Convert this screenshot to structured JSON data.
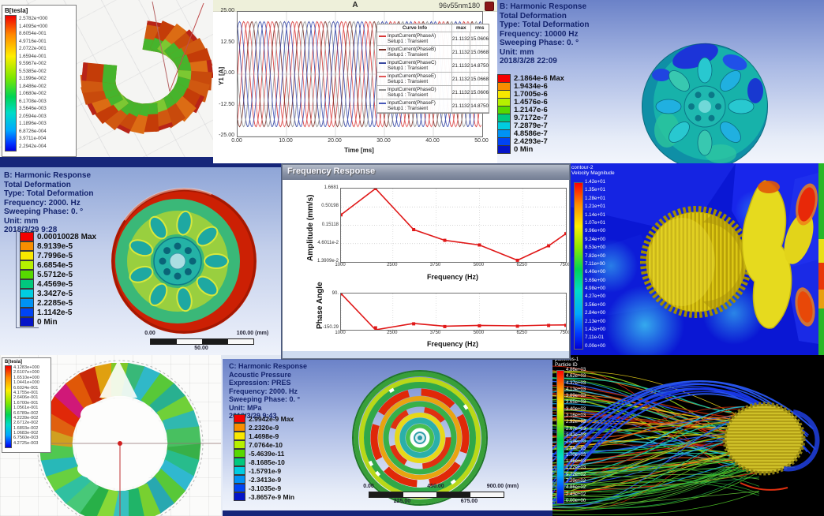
{
  "panels": {
    "torus": {
      "legend_title": "B[tesla]",
      "legend_values": [
        "2.5782e+000",
        "1.4095e+000",
        "8.6054e-001",
        "4.9716e-001",
        "2.0722e-001",
        "1.6594e-001",
        "9.5967e-002",
        "5.5385e-002",
        "3.1996e-002",
        "1.8486e-002",
        "1.0680e-002",
        "6.1708e-003",
        "3.5646e-003",
        "2.0594e-003",
        "1.1896e-003",
        "6.8726e-004",
        "3.9711e-004",
        "2.2942e-004"
      ]
    },
    "currents": {
      "title": "A",
      "model_label": "96v55nm180",
      "ylabel": "Y1 [A]",
      "xlabel": "Time [ms]",
      "yticks": [
        "25.00",
        "12.50",
        "0.00",
        "-12.50",
        "-25.00"
      ],
      "xticks": [
        "0.00",
        "10.00",
        "20.00",
        "30.00",
        "40.00",
        "50.00"
      ],
      "table_headers": [
        "Curve Info",
        "max",
        "rms"
      ],
      "curves": [
        {
          "name": "InputCurrent(PhaseA)",
          "setup": "Setup1 : Transient",
          "max": "21.1132",
          "rms": "15.0606",
          "color": "#d83838"
        },
        {
          "name": "InputCurrent(PhaseB)",
          "setup": "Setup1 : Transient",
          "max": "21.1132",
          "rms": "15.0668",
          "color": "#7a3028"
        },
        {
          "name": "InputCurrent(PhaseC)",
          "setup": "Setup1 : Transient",
          "max": "21.1132",
          "rms": "14.8750",
          "color": "#3848a0"
        },
        {
          "name": "InputCurrent(PhaseE)",
          "setup": "Setup1 : Transient",
          "max": "21.1132",
          "rms": "15.0668",
          "color": "#e05858"
        },
        {
          "name": "InputCurrent(PhaseD)",
          "setup": "Setup1 : Transient",
          "max": "21.1132",
          "rms": "15.0606",
          "color": "#909090"
        },
        {
          "name": "InputCurrent(PhaseF)",
          "setup": "Setup1 : Transient",
          "max": "21.1132",
          "rms": "14.8750",
          "color": "#4858b8"
        }
      ]
    },
    "harmonic_top": {
      "header_lines": [
        "B: Harmonic Response",
        "Total Deformation",
        "Type: Total Deformation",
        "Frequency: 10000 Hz",
        "Sweeping Phase: 0. °",
        "Unit: mm",
        "2018/3/28 22:09"
      ],
      "legend_values": [
        "2.1864e-6 Max",
        "1.9434e-6",
        "1.7005e-6",
        "1.4576e-6",
        "1.2147e-6",
        "9.7172e-7",
        "7.2879e-7",
        "4.8586e-7",
        "2.4293e-7",
        "0 Min"
      ]
    },
    "harmonic_mid": {
      "header_lines": [
        "B: Harmonic Response",
        "Total Deformation",
        "Type: Total Deformation",
        "Frequency: 2000. Hz",
        "Sweeping Phase: 0. °",
        "Unit: mm",
        "2018/3/29 9:28"
      ],
      "legend_values": [
        "0.00010028 Max",
        "8.9139e-5",
        "7.7996e-5",
        "6.6854e-5",
        "5.5712e-5",
        "4.4569e-5",
        "3.3427e-5",
        "2.2285e-5",
        "1.1142e-5",
        "0 Min"
      ],
      "ruler": {
        "top": [
          "0.00",
          "100.00 (mm)"
        ],
        "bottom": [
          "50.00"
        ]
      }
    },
    "freq_response": {
      "window_title": "Frequency Response",
      "amplitude": {
        "ylabel": "Amplitude (mm/s)",
        "xlabel": "Frequency (Hz)",
        "yticks": [
          "1.6681",
          "0.50198",
          "0.15118",
          "4.6011e-2",
          "1.3909e-2"
        ],
        "xticks": [
          "1000",
          "2500",
          "3750",
          "5000",
          "6250",
          "7500"
        ]
      },
      "phase": {
        "ylabel": "Phase Angle",
        "xlabel": "Frequency (Hz)",
        "yticks": [
          "90.",
          "-150.29"
        ],
        "xticks": [
          "1000",
          "2500",
          "3750",
          "5000",
          "6250",
          "7500"
        ]
      }
    },
    "velocity_contour": {
      "legend_title_lines": [
        "contour-2",
        "Velocity Magnitude"
      ],
      "legend_values": [
        "1.42e+01",
        "1.35e+01",
        "1.28e+01",
        "1.21e+01",
        "1.14e+01",
        "1.07e+01",
        "9.96e+00",
        "9.24e+00",
        "8.53e+00",
        "7.82e+00",
        "7.11e+00",
        "6.40e+00",
        "5.69e+00",
        "4.98e+00",
        "4.27e+00",
        "3.56e+00",
        "2.84e+00",
        "2.13e+00",
        "1.42e+00",
        "7.11e-01",
        "0.00e+00"
      ]
    },
    "stator": {
      "legend_title": "B[tesla]",
      "legend_values": [
        "4.1283e+000",
        "2.6107e+000",
        "1.6510e+000",
        "1.0441e+000",
        "6.6024e-001",
        "4.1755e-001",
        "2.6406e-001",
        "1.6700e-001",
        "1.0561e-001",
        "6.6789e-002",
        "4.2239e-002",
        "2.6712e-002",
        "1.6893e-002",
        "1.0683e-002",
        "6.7560e-003",
        "4.2725e-003"
      ]
    },
    "acoustic": {
      "header_lines": [
        "C: Harmonic Response",
        "Acoustic Pressure",
        "Expression: PRES",
        "Frequency: 2000. Hz",
        "Sweeping Phase: 0. °",
        "Unit: MPa",
        "2018/3/29 9:43"
      ],
      "legend_values": [
        "2.9942e-9 Max",
        "2.2320e-9",
        "1.4698e-9",
        "7.0764e-10",
        "-5.4639e-11",
        "-8.1685e-10",
        "-1.5791e-9",
        "-2.3413e-9",
        "-3.1035e-9",
        "-3.8657e-9 Min"
      ],
      "ruler": {
        "top": [
          "0.00",
          "450.00",
          "900.00 (mm)"
        ],
        "bottom": [
          "225.00",
          "675.00"
        ]
      }
    },
    "pathlines": {
      "legend_title_lines": [
        "pathlines-1",
        "Particle ID"
      ],
      "legend_values": [
        "4.86e+03",
        "4.62e+03",
        "4.37e+03",
        "4.13e+03",
        "3.89e+03",
        "3.65e+03",
        "3.40e+03",
        "3.16e+03",
        "2.92e+03",
        "2.67e+03",
        "2.43e+03",
        "2.19e+03",
        "1.94e+03",
        "1.70e+03",
        "1.46e+03",
        "1.22e+03",
        "9.72e+02",
        "7.29e+02",
        "4.86e+02",
        "2.43e+02",
        "0.00e+00"
      ]
    }
  },
  "colors": {
    "ansys_bands": [
      "#f40000",
      "#f88e00",
      "#f8e800",
      "#b6f000",
      "#57d800",
      "#00c87e",
      "#00cce0",
      "#0092f4",
      "#0044f4",
      "#0414c8"
    ],
    "curve_red": "#e01818"
  },
  "chart_data": [
    {
      "type": "line",
      "title": "A",
      "subtitle": "96v55nm180",
      "xlabel": "Time [ms]",
      "ylabel": "Y1 [A]",
      "x_range": [
        0,
        50
      ],
      "y_range": [
        -25,
        25
      ],
      "legend_position": "right",
      "series": [
        {
          "name": "InputCurrent(PhaseA)",
          "amplitude": 21.1132,
          "period_ms": 5,
          "phase_deg": 0,
          "max": 21.1132,
          "rms": 15.0606
        },
        {
          "name": "InputCurrent(PhaseB)",
          "amplitude": 21.1132,
          "period_ms": 5,
          "phase_deg": -120,
          "max": 21.1132,
          "rms": 15.0668
        },
        {
          "name": "InputCurrent(PhaseC)",
          "amplitude": 21.1132,
          "period_ms": 5,
          "phase_deg": -240,
          "max": 21.1132,
          "rms": 14.875
        },
        {
          "name": "InputCurrent(PhaseE)",
          "amplitude": 21.1132,
          "period_ms": 5,
          "phase_deg": -60,
          "max": 21.1132,
          "rms": 15.0668
        },
        {
          "name": "InputCurrent(PhaseD)",
          "amplitude": 21.1132,
          "period_ms": 5,
          "phase_deg": -180,
          "max": 21.1132,
          "rms": 15.0606
        },
        {
          "name": "InputCurrent(PhaseF)",
          "amplitude": 21.1132,
          "period_ms": 5,
          "phase_deg": -300,
          "max": 21.1132,
          "rms": 14.875
        }
      ]
    },
    {
      "type": "line",
      "title": "Frequency Response - Amplitude",
      "xlabel": "Frequency (Hz)",
      "ylabel": "Amplitude (mm/s)",
      "y_scale": "log",
      "x_range": [
        1000,
        7500
      ],
      "y_range": [
        0.013909,
        1.6681
      ],
      "x": [
        1000,
        2000,
        3100,
        4000,
        5000,
        6100,
        7000,
        7500
      ],
      "y": [
        0.3,
        1.6681,
        0.115,
        0.057,
        0.042,
        0.0155,
        0.04,
        0.088
      ]
    },
    {
      "type": "line",
      "title": "Frequency Response - Phase Angle",
      "xlabel": "Frequency (Hz)",
      "ylabel": "Phase Angle",
      "x_range": [
        1000,
        7500
      ],
      "y_range": [
        -150.29,
        90
      ],
      "x": [
        1000,
        2000,
        3100,
        4000,
        5000,
        6100,
        7000,
        7500
      ],
      "y": [
        90,
        -150.29,
        -108,
        -126,
        -121,
        -124,
        -119,
        -118
      ]
    }
  ]
}
